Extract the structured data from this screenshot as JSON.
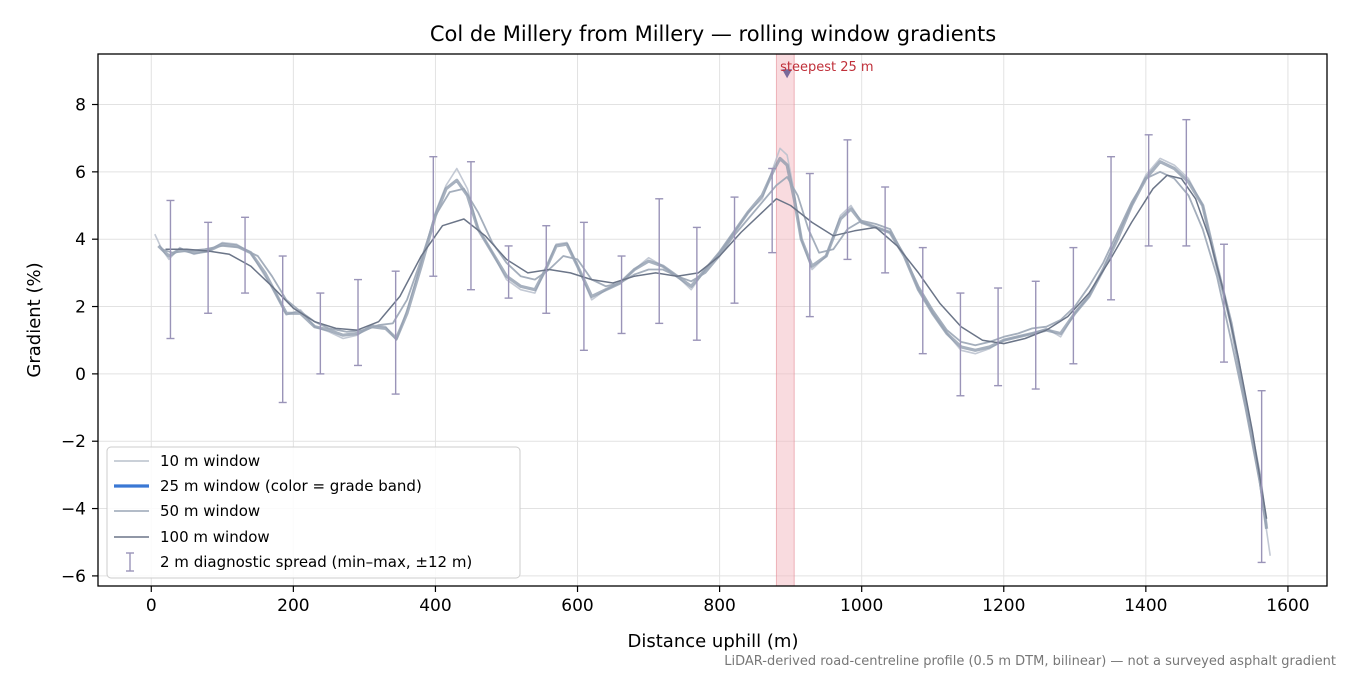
{
  "chart_data": {
    "type": "line",
    "title": "Col de Millery from Millery — rolling window gradients",
    "xlabel": "Distance uphill (m)",
    "ylabel": "Gradient (%)",
    "xlim": [
      -75,
      1655
    ],
    "ylim": [
      -6.3,
      9.5
    ],
    "xticks": [
      0,
      200,
      400,
      600,
      800,
      1000,
      1200,
      1400,
      1600
    ],
    "yticks": [
      -6,
      -4,
      -2,
      0,
      2,
      4,
      6,
      8
    ],
    "xtick_labels": [
      "0",
      "200",
      "400",
      "600",
      "800",
      "1000",
      "1200",
      "1400",
      "1600"
    ],
    "ytick_labels": [
      "−6",
      "−4",
      "−2",
      "0",
      "2",
      "4",
      "6",
      "8"
    ],
    "grid": true,
    "legend_position": "lower-left",
    "colors": {
      "w10": "#b8c0cc",
      "w25_legend": "#3a78d4",
      "w25_line": "#8a97aa",
      "w50": "#9aa5b5",
      "w100": "#6b7588",
      "errorbar": "#9a94b8",
      "highlight": "#f4b8bf",
      "annotation": "#c0303a"
    },
    "series": [
      {
        "name": "10 m window",
        "x": [
          5,
          15,
          25,
          40,
          60,
          80,
          100,
          120,
          140,
          160,
          175,
          190,
          210,
          230,
          250,
          270,
          290,
          310,
          330,
          345,
          360,
          380,
          400,
          415,
          430,
          445,
          460,
          480,
          500,
          520,
          540,
          555,
          570,
          585,
          600,
          620,
          640,
          660,
          680,
          700,
          720,
          740,
          760,
          780,
          800,
          820,
          840,
          860,
          875,
          885,
          895,
          905,
          915,
          930,
          950,
          970,
          985,
          1000,
          1020,
          1040,
          1060,
          1080,
          1100,
          1120,
          1140,
          1160,
          1180,
          1200,
          1220,
          1240,
          1260,
          1280,
          1300,
          1320,
          1340,
          1360,
          1380,
          1400,
          1420,
          1440,
          1460,
          1480,
          1500,
          1520,
          1540,
          1560,
          1575
        ],
        "y": [
          4.15,
          3.7,
          3.4,
          3.75,
          3.55,
          3.65,
          3.9,
          3.85,
          3.6,
          2.9,
          2.4,
          1.75,
          1.9,
          1.4,
          1.25,
          1.05,
          1.15,
          1.45,
          1.4,
          1.0,
          1.9,
          3.3,
          4.8,
          5.6,
          6.1,
          5.5,
          4.3,
          3.6,
          2.8,
          2.5,
          2.4,
          3.1,
          3.85,
          3.9,
          3.2,
          2.2,
          2.5,
          2.7,
          3.1,
          3.45,
          3.2,
          2.9,
          2.5,
          3.1,
          3.6,
          4.2,
          4.8,
          5.2,
          6.1,
          6.7,
          6.5,
          5.4,
          4.0,
          3.1,
          3.5,
          4.7,
          5.0,
          4.5,
          4.35,
          4.2,
          3.5,
          2.5,
          1.8,
          1.2,
          0.7,
          0.6,
          0.75,
          1.0,
          1.1,
          1.2,
          1.35,
          1.1,
          1.8,
          2.3,
          3.1,
          4.1,
          5.0,
          5.9,
          6.4,
          6.2,
          5.8,
          5.0,
          3.2,
          1.5,
          -0.8,
          -3.2,
          -5.4
        ]
      },
      {
        "name": "25 m window (color = grade band)",
        "x": [
          10,
          25,
          40,
          60,
          80,
          100,
          120,
          140,
          160,
          175,
          190,
          210,
          230,
          250,
          270,
          290,
          310,
          330,
          345,
          360,
          380,
          400,
          415,
          430,
          445,
          460,
          480,
          500,
          520,
          540,
          555,
          570,
          585,
          600,
          620,
          640,
          660,
          680,
          700,
          720,
          740,
          760,
          780,
          800,
          820,
          840,
          860,
          875,
          885,
          895,
          905,
          915,
          930,
          950,
          970,
          985,
          1000,
          1020,
          1040,
          1060,
          1080,
          1100,
          1120,
          1140,
          1160,
          1180,
          1200,
          1220,
          1240,
          1260,
          1280,
          1300,
          1320,
          1340,
          1360,
          1380,
          1400,
          1420,
          1440,
          1460,
          1480,
          1500,
          1520,
          1540,
          1560,
          1570
        ],
        "y": [
          3.8,
          3.5,
          3.7,
          3.6,
          3.65,
          3.85,
          3.8,
          3.6,
          3.0,
          2.4,
          1.8,
          1.8,
          1.4,
          1.3,
          1.15,
          1.2,
          1.4,
          1.35,
          1.05,
          1.8,
          3.2,
          4.7,
          5.5,
          5.75,
          5.3,
          4.3,
          3.6,
          2.9,
          2.6,
          2.5,
          3.1,
          3.8,
          3.85,
          3.2,
          2.3,
          2.5,
          2.7,
          3.1,
          3.35,
          3.2,
          2.9,
          2.6,
          3.1,
          3.6,
          4.2,
          4.8,
          5.3,
          6.0,
          6.4,
          6.2,
          5.2,
          4.0,
          3.2,
          3.5,
          4.6,
          4.9,
          4.5,
          4.35,
          4.2,
          3.5,
          2.5,
          1.8,
          1.2,
          0.8,
          0.7,
          0.8,
          1.0,
          1.1,
          1.2,
          1.3,
          1.2,
          1.8,
          2.3,
          3.1,
          4.0,
          5.0,
          5.8,
          6.3,
          6.1,
          5.7,
          5.0,
          3.2,
          1.5,
          -0.8,
          -3.0,
          -4.6
        ]
      },
      {
        "name": "50 m window",
        "x": [
          15,
          30,
          50,
          75,
          100,
          125,
          150,
          170,
          190,
          210,
          230,
          250,
          275,
          300,
          320,
          340,
          360,
          380,
          400,
          420,
          440,
          460,
          480,
          500,
          520,
          540,
          560,
          580,
          600,
          620,
          640,
          660,
          680,
          700,
          720,
          740,
          760,
          780,
          800,
          820,
          840,
          860,
          880,
          895,
          910,
          925,
          940,
          960,
          980,
          1000,
          1020,
          1040,
          1060,
          1080,
          1100,
          1120,
          1140,
          1160,
          1180,
          1200,
          1220,
          1240,
          1260,
          1280,
          1300,
          1320,
          1340,
          1360,
          1380,
          1400,
          1420,
          1440,
          1460,
          1480,
          1500,
          1520,
          1540,
          1560,
          1570
        ],
        "y": [
          3.7,
          3.6,
          3.65,
          3.7,
          3.8,
          3.75,
          3.5,
          2.9,
          2.2,
          1.85,
          1.55,
          1.35,
          1.25,
          1.3,
          1.45,
          1.5,
          2.2,
          3.4,
          4.7,
          5.4,
          5.5,
          4.8,
          3.9,
          3.3,
          2.9,
          2.8,
          3.1,
          3.5,
          3.4,
          2.8,
          2.6,
          2.7,
          2.95,
          3.1,
          3.1,
          2.9,
          2.75,
          3.0,
          3.5,
          4.1,
          4.6,
          5.1,
          5.6,
          5.85,
          5.3,
          4.3,
          3.6,
          3.7,
          4.3,
          4.55,
          4.45,
          4.3,
          3.5,
          2.6,
          1.9,
          1.3,
          0.95,
          0.85,
          0.95,
          1.1,
          1.2,
          1.35,
          1.4,
          1.6,
          2.0,
          2.6,
          3.3,
          4.2,
          5.1,
          5.8,
          6.0,
          5.8,
          5.3,
          4.3,
          2.9,
          1.0,
          -1.0,
          -3.2,
          -4.5
        ]
      },
      {
        "name": "100 m window",
        "x": [
          20,
          50,
          80,
          110,
          140,
          170,
          200,
          230,
          260,
          290,
          320,
          350,
          380,
          410,
          440,
          470,
          500,
          530,
          560,
          590,
          620,
          650,
          680,
          710,
          740,
          770,
          800,
          830,
          860,
          880,
          900,
          930,
          960,
          990,
          1020,
          1050,
          1080,
          1110,
          1140,
          1170,
          1200,
          1230,
          1260,
          1290,
          1320,
          1350,
          1380,
          1410,
          1430,
          1450,
          1470,
          1490,
          1510,
          1530,
          1550,
          1570
        ],
        "y": [
          3.7,
          3.7,
          3.65,
          3.55,
          3.2,
          2.6,
          1.95,
          1.55,
          1.35,
          1.3,
          1.55,
          2.3,
          3.5,
          4.4,
          4.6,
          4.1,
          3.4,
          3.0,
          3.1,
          3.0,
          2.8,
          2.7,
          2.9,
          3.0,
          2.9,
          3.0,
          3.5,
          4.2,
          4.8,
          5.2,
          5.0,
          4.5,
          4.1,
          4.25,
          4.35,
          3.8,
          3.0,
          2.1,
          1.4,
          1.0,
          0.9,
          1.05,
          1.3,
          1.7,
          2.4,
          3.4,
          4.5,
          5.5,
          5.9,
          5.8,
          5.2,
          4.0,
          2.4,
          0.5,
          -1.7,
          -4.3
        ]
      }
    ],
    "errorbars": {
      "name": "2 m diagnostic spread (min–max, ±12 m)",
      "x": [
        27,
        80,
        132,
        185,
        238,
        291,
        344,
        397,
        450,
        503,
        556,
        609,
        662,
        715,
        768,
        821,
        874,
        927,
        980,
        1033,
        1086,
        1139,
        1192,
        1245,
        1298,
        1351,
        1404,
        1457,
        1510,
        1563
      ],
      "low": [
        1.05,
        1.8,
        2.4,
        -0.85,
        0.0,
        0.25,
        -0.6,
        2.9,
        2.5,
        2.25,
        1.8,
        0.7,
        1.2,
        1.5,
        1.0,
        2.1,
        3.6,
        1.7,
        3.4,
        3.0,
        0.6,
        -0.65,
        -0.35,
        -0.45,
        0.3,
        2.2,
        3.8,
        3.8,
        0.35,
        -5.6
      ],
      "high": [
        5.15,
        4.5,
        4.65,
        3.5,
        2.4,
        2.8,
        3.05,
        6.45,
        6.3,
        3.8,
        4.4,
        4.5,
        3.5,
        5.2,
        4.35,
        5.25,
        6.1,
        5.95,
        6.95,
        5.55,
        3.75,
        2.4,
        2.55,
        2.75,
        3.75,
        6.45,
        7.1,
        7.55,
        3.85,
        -0.5
      ]
    },
    "highlight_band": {
      "x0": 880,
      "x1": 905
    },
    "annotations": [
      {
        "text": "steepest 25 m",
        "x": 895,
        "y": 8.9
      }
    ]
  },
  "footnote": "LiDAR-derived road-centreline profile (0.5 m DTM, bilinear) — not a surveyed asphalt gradient"
}
